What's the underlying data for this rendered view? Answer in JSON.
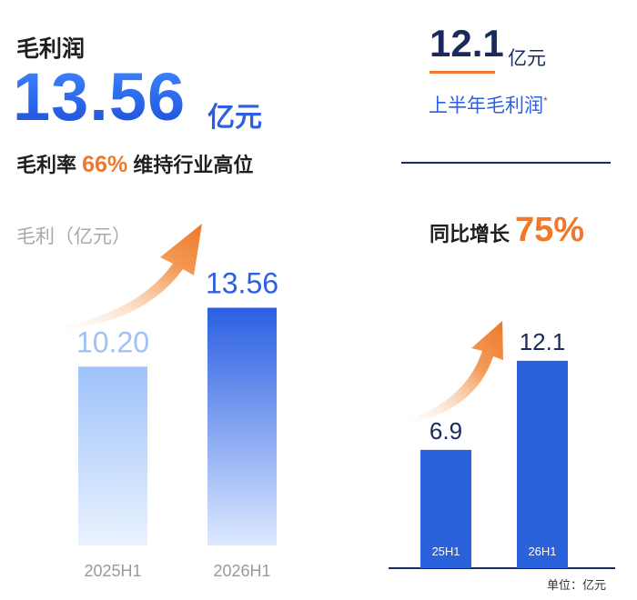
{
  "left": {
    "title": "毛利润",
    "big_value": "13.56",
    "big_unit": "亿元",
    "sub_prefix": "毛利率",
    "sub_pct": "66%",
    "sub_suffix": "维持行业高位",
    "axis_label": "毛利（亿元）"
  },
  "right": {
    "big_value": "12.1",
    "big_unit": "亿元",
    "sub": "上半年毛利润",
    "sub_mark": "*",
    "growth_prefix": "同比增长",
    "growth_pct": "75%",
    "unit_note": "单位：亿元"
  },
  "colors": {
    "accent_orange": "#f0782a",
    "blue_dark": "#1e4fd8",
    "blue_light": "#a9c8fb",
    "bar_right": "#2a62dc",
    "navy": "#1a2a5c"
  },
  "chart_data": [
    {
      "type": "bar",
      "categories": [
        "2025H1",
        "2026H1"
      ],
      "values": [
        10.2,
        13.56
      ],
      "value_labels": [
        "10.20",
        "13.56"
      ],
      "ylabel": "毛利（亿元）",
      "ylim": [
        0,
        14
      ]
    },
    {
      "type": "bar",
      "categories": [
        "25H1",
        "26H1"
      ],
      "values": [
        6.9,
        12.1
      ],
      "value_labels": [
        "6.9",
        "12.1"
      ],
      "ylabel": "单位：亿元",
      "ylim": [
        0,
        14
      ]
    }
  ]
}
